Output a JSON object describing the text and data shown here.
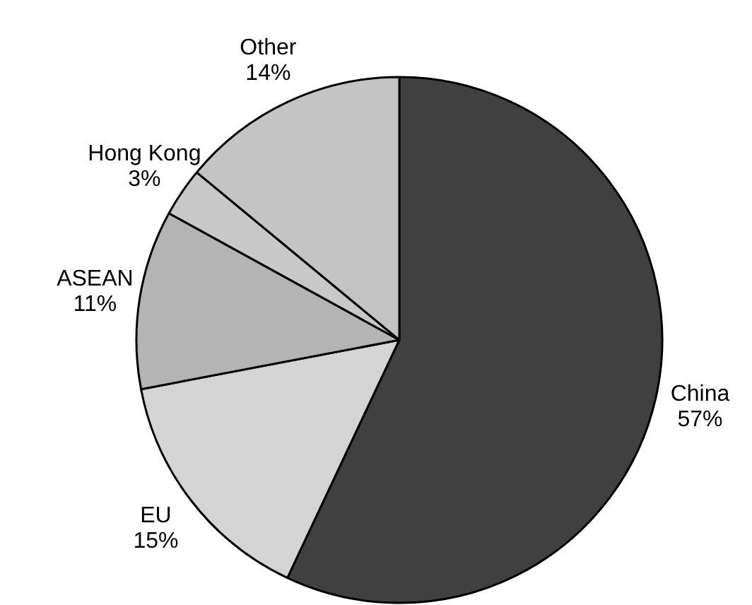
{
  "chart_data": {
    "type": "pie",
    "categories": [
      "China",
      "EU",
      "ASEAN",
      "Hong Kong",
      "Other"
    ],
    "values": [
      57,
      15,
      11,
      3,
      14
    ],
    "value_labels": [
      "57%",
      "15%",
      "11%",
      "3%",
      "14%"
    ],
    "colors": [
      "#404040",
      "#d4d4d4",
      "#b4b4b4",
      "#c8c8c8",
      "#c4c4c4"
    ],
    "legend": false
  }
}
